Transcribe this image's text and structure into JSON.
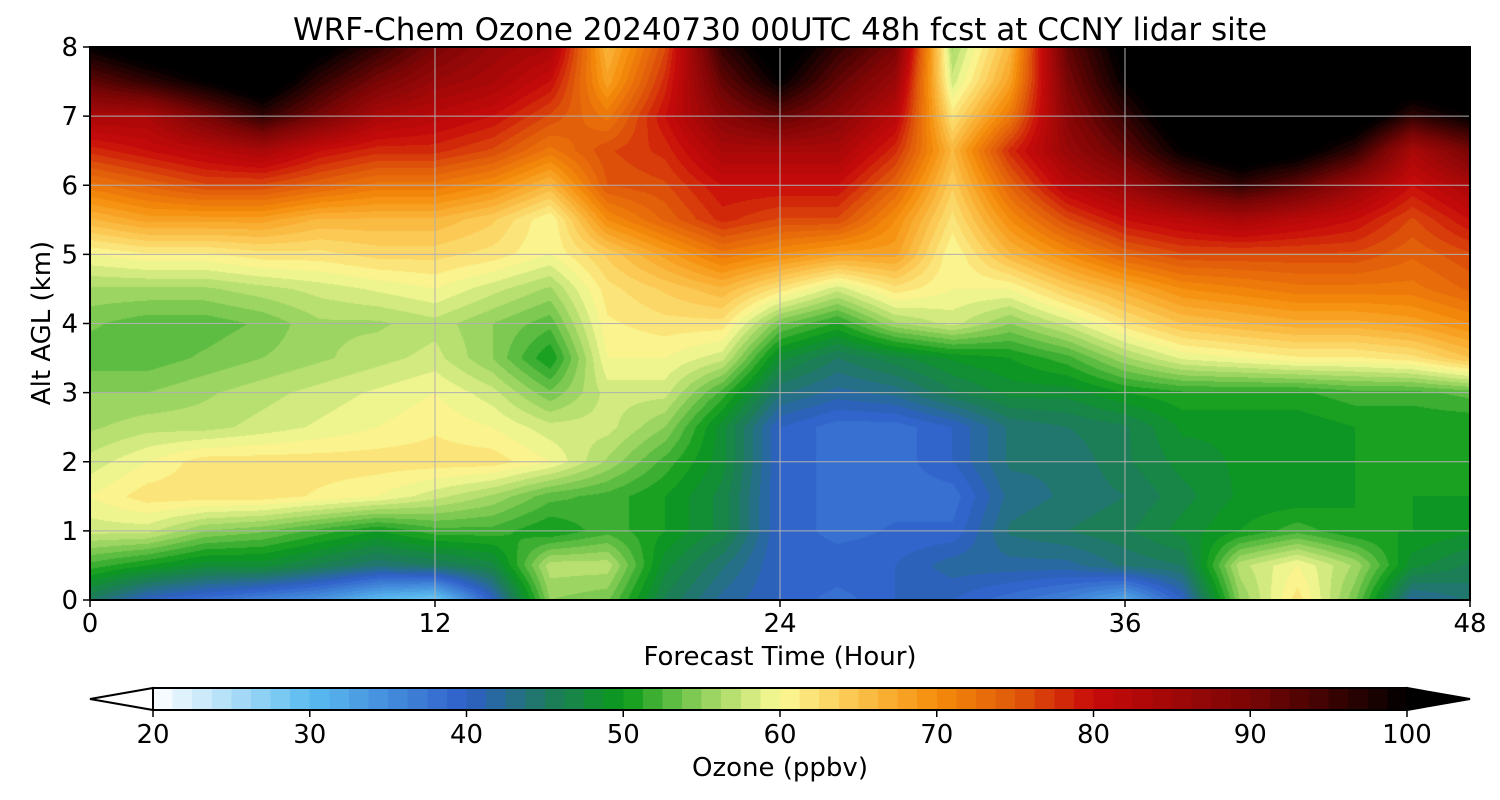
{
  "chart_data": {
    "type": "heatmap",
    "title": "WRF-Chem Ozone  20240730 00UTC 48h fcst at CCNY lidar site",
    "xlabel": "Forecast Time (Hour)",
    "ylabel": "Alt AGL (km)",
    "xlim": [
      0,
      48
    ],
    "ylim": [
      0,
      8
    ],
    "x_ticks": [
      0,
      12,
      24,
      36,
      48
    ],
    "y_ticks": [
      0,
      1,
      2,
      3,
      4,
      5,
      6,
      7,
      8
    ],
    "grid": true,
    "colorbar": {
      "label": "Ozone  (ppbv)",
      "vmin": 20,
      "vmax": 100,
      "ticks": [
        20,
        30,
        40,
        50,
        60,
        70,
        80,
        90,
        100
      ],
      "extend": "both",
      "stops": [
        {
          "v": 20,
          "color": "#ffffff"
        },
        {
          "v": 30,
          "color": "#5bbcf0"
        },
        {
          "v": 40,
          "color": "#2f5fc8"
        },
        {
          "v": 45,
          "color": "#1f7a60"
        },
        {
          "v": 50,
          "color": "#0a9a1a"
        },
        {
          "v": 55,
          "color": "#8fd05a"
        },
        {
          "v": 60,
          "color": "#fbfa96"
        },
        {
          "v": 65,
          "color": "#fbc24a"
        },
        {
          "v": 70,
          "color": "#f58c0a"
        },
        {
          "v": 75,
          "color": "#e05a0a"
        },
        {
          "v": 80,
          "color": "#c80a0a"
        },
        {
          "v": 90,
          "color": "#7a0505"
        },
        {
          "v": 100,
          "color": "#000000"
        }
      ]
    },
    "heights_km": [
      0,
      0.5,
      1,
      1.5,
      2,
      2.5,
      3,
      3.5,
      4,
      4.5,
      5,
      5.5,
      6,
      6.5,
      7,
      7.5,
      8
    ],
    "hours": [
      0,
      2,
      4,
      6,
      8,
      10,
      12,
      14,
      16,
      18,
      20,
      22,
      24,
      26,
      28,
      30,
      32,
      34,
      36,
      38,
      40,
      42,
      44,
      46,
      48
    ],
    "ozone_ppbv": [
      [
        45,
        40,
        38,
        36,
        34,
        30,
        28,
        40,
        55,
        54,
        46,
        42,
        40,
        38,
        40,
        40,
        38,
        36,
        32,
        40,
        55,
        62,
        54,
        42,
        44
      ],
      [
        52,
        50,
        48,
        48,
        46,
        44,
        45,
        47,
        57,
        57,
        48,
        44,
        40,
        40,
        40,
        42,
        42,
        42,
        44,
        45,
        57,
        60,
        56,
        48,
        46
      ],
      [
        58,
        58,
        55,
        54,
        52,
        50,
        52,
        52,
        50,
        52,
        50,
        47,
        40,
        38,
        39,
        39,
        44,
        45,
        46,
        48,
        50,
        52,
        50,
        50,
        49
      ],
      [
        60,
        62,
        62,
        62,
        61,
        60,
        58,
        56,
        53,
        52,
        50,
        47,
        40,
        38,
        38,
        38,
        43,
        44,
        45,
        47,
        49,
        49,
        50,
        50,
        50
      ],
      [
        58,
        60,
        62,
        62,
        62,
        62,
        62,
        62,
        60,
        56,
        52,
        48,
        40,
        38,
        38,
        40,
        44,
        44,
        46,
        48,
        49,
        49,
        50,
        50,
        50
      ],
      [
        56,
        57,
        57,
        58,
        59,
        60,
        61,
        60,
        58,
        58,
        55,
        48,
        40,
        38,
        38,
        40,
        44,
        45,
        46,
        49,
        49,
        49,
        50,
        50,
        50
      ],
      [
        55,
        55,
        56,
        57,
        58,
        59,
        60,
        58,
        54,
        58,
        58,
        52,
        44,
        42,
        43,
        46,
        48,
        48,
        50,
        51,
        51,
        51,
        52,
        52,
        53
      ],
      [
        53,
        53,
        54,
        55,
        56,
        57,
        58,
        55,
        50,
        60,
        60,
        58,
        48,
        45,
        47,
        49,
        50,
        52,
        56,
        59,
        60,
        61,
        61,
        62,
        65
      ],
      [
        54,
        53,
        53,
        54,
        56,
        56,
        57,
        55,
        53,
        61,
        62,
        62,
        54,
        51,
        56,
        58,
        55,
        58,
        62,
        65,
        66,
        67,
        67,
        68,
        70
      ],
      [
        56,
        56,
        56,
        57,
        58,
        59,
        60,
        58,
        56,
        62,
        64,
        66,
        62,
        58,
        62,
        60,
        60,
        64,
        67,
        70,
        71,
        72,
        72,
        72,
        74
      ],
      [
        60,
        61,
        61,
        62,
        62,
        63,
        63,
        62,
        60,
        64,
        68,
        72,
        70,
        68,
        68,
        60,
        66,
        70,
        74,
        76,
        76,
        76,
        76,
        74,
        76
      ],
      [
        66,
        68,
        68,
        68,
        66,
        66,
        66,
        64,
        60,
        70,
        74,
        78,
        76,
        76,
        70,
        62,
        70,
        76,
        80,
        82,
        84,
        82,
        80,
        76,
        80
      ],
      [
        72,
        74,
        76,
        76,
        74,
        72,
        72,
        70,
        66,
        75,
        76,
        80,
        80,
        80,
        74,
        64,
        74,
        82,
        86,
        92,
        96,
        92,
        86,
        80,
        84
      ],
      [
        78,
        80,
        82,
        84,
        80,
        78,
        78,
        76,
        72,
        76,
        78,
        84,
        84,
        84,
        78,
        66,
        78,
        86,
        92,
        100,
        104,
        102,
        96,
        84,
        90
      ],
      [
        84,
        84,
        90,
        96,
        90,
        84,
        82,
        80,
        76,
        72,
        80,
        88,
        92,
        88,
        82,
        62,
        72,
        88,
        96,
        104,
        108,
        106,
        104,
        96,
        100
      ],
      [
        92,
        96,
        100,
        104,
        96,
        90,
        86,
        84,
        80,
        68,
        78,
        92,
        100,
        92,
        86,
        58,
        68,
        90,
        100,
        106,
        108,
        108,
        108,
        104,
        106
      ],
      [
        100,
        104,
        106,
        106,
        102,
        96,
        90,
        86,
        84,
        66,
        76,
        96,
        104,
        96,
        90,
        56,
        66,
        92,
        102,
        108,
        110,
        110,
        110,
        108,
        108
      ]
    ]
  }
}
